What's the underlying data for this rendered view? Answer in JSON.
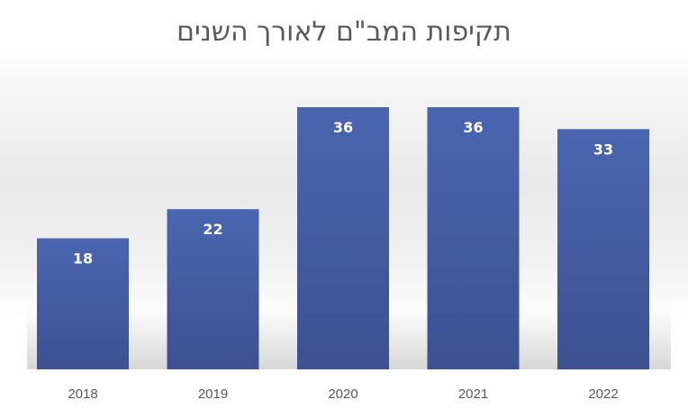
{
  "chart_data": {
    "type": "bar",
    "title": "תקיפות המב\"ם לאורך השנים",
    "categories": [
      "2018",
      "2019",
      "2020",
      "2021",
      "2022"
    ],
    "values": [
      18,
      22,
      36,
      36,
      33
    ],
    "xlabel": "",
    "ylabel": "",
    "ylim": [
      0,
      36
    ],
    "grid": false,
    "legend": "none",
    "data_labels": true,
    "colors": {
      "bar_top": "#4a65b0",
      "bar_bottom": "#3d5191",
      "data_label": "#ffffff",
      "tick_label": "#595959",
      "title": "#595959"
    }
  }
}
